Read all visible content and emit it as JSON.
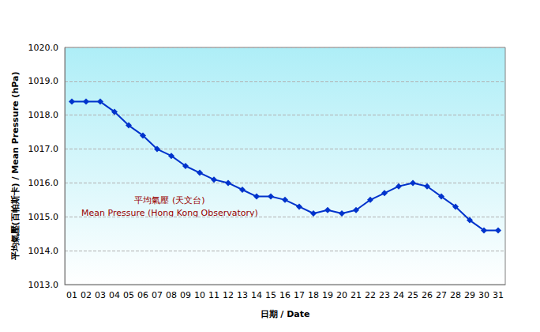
{
  "chart_data": {
    "type": "line",
    "x_label": "日期 / Date",
    "y_label": "平均氣壓(百帕斯卡) / Mean Pressure (hPa)",
    "annotations": [
      "平均氣壓 (天文台)",
      "Mean Pressure (Hong Kong Observatory)"
    ],
    "categories": [
      "01",
      "02",
      "03",
      "04",
      "05",
      "06",
      "07",
      "08",
      "09",
      "10",
      "11",
      "12",
      "13",
      "14",
      "15",
      "16",
      "17",
      "18",
      "19",
      "20",
      "21",
      "22",
      "23",
      "24",
      "25",
      "26",
      "27",
      "28",
      "29",
      "30",
      "31"
    ],
    "values": [
      1018.4,
      1018.4,
      1018.4,
      1018.1,
      1017.7,
      1017.4,
      1017.0,
      1016.8,
      1016.5,
      1016.3,
      1016.1,
      1016.0,
      1015.8,
      1015.6,
      1015.6,
      1015.5,
      1015.3,
      1015.1,
      1015.2,
      1015.1,
      1015.2,
      1015.5,
      1015.7,
      1015.9,
      1016.0,
      1015.9,
      1015.6,
      1015.3,
      1014.9,
      1014.6,
      1014.6
    ],
    "color": "#0033cc",
    "marker": "diamond",
    "ylim": [
      1013,
      1020
    ],
    "yticks": [
      {
        "value": 1013,
        "label": "1013.0"
      },
      {
        "value": 1014,
        "label": "1014.0"
      },
      {
        "value": 1015,
        "label": "1015.0"
      },
      {
        "value": 1016,
        "label": "1016.0"
      },
      {
        "value": 1017,
        "label": "1017.0"
      },
      {
        "value": 1018,
        "label": "1018.0"
      },
      {
        "value": 1019,
        "label": "1019.0"
      },
      {
        "value": 1020,
        "label": "1020.0"
      }
    ],
    "grid": true
  }
}
